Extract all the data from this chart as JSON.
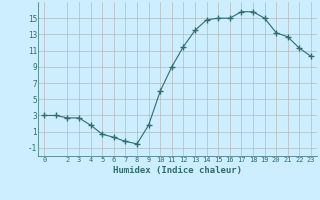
{
  "x": [
    0,
    1,
    2,
    3,
    4,
    5,
    6,
    7,
    8,
    9,
    10,
    11,
    12,
    13,
    14,
    15,
    16,
    17,
    18,
    19,
    20,
    21,
    22,
    23
  ],
  "y": [
    3,
    3,
    2.7,
    2.7,
    1.8,
    0.7,
    0.3,
    -0.2,
    -0.5,
    1.8,
    6,
    9,
    11.5,
    13.5,
    14.8,
    15,
    15,
    15.8,
    15.8,
    15,
    13.2,
    12.7,
    11.3,
    10.3
  ],
  "line_color": "#2d6e6e",
  "marker": "+",
  "marker_size": 4,
  "bg_color": "#cceeff",
  "xlabel": "Humidex (Indice chaleur)",
  "xlim": [
    -0.5,
    23.5
  ],
  "ylim": [
    -2,
    17
  ],
  "yticks": [
    -1,
    1,
    3,
    5,
    7,
    9,
    11,
    13,
    15
  ],
  "xticks": [
    0,
    2,
    3,
    4,
    5,
    6,
    7,
    8,
    9,
    10,
    11,
    12,
    13,
    14,
    15,
    16,
    17,
    18,
    19,
    20,
    21,
    22,
    23
  ],
  "grid_color": "#b8b8b8",
  "tick_color": "#2d6e6e",
  "label_color": "#2d6e6e"
}
